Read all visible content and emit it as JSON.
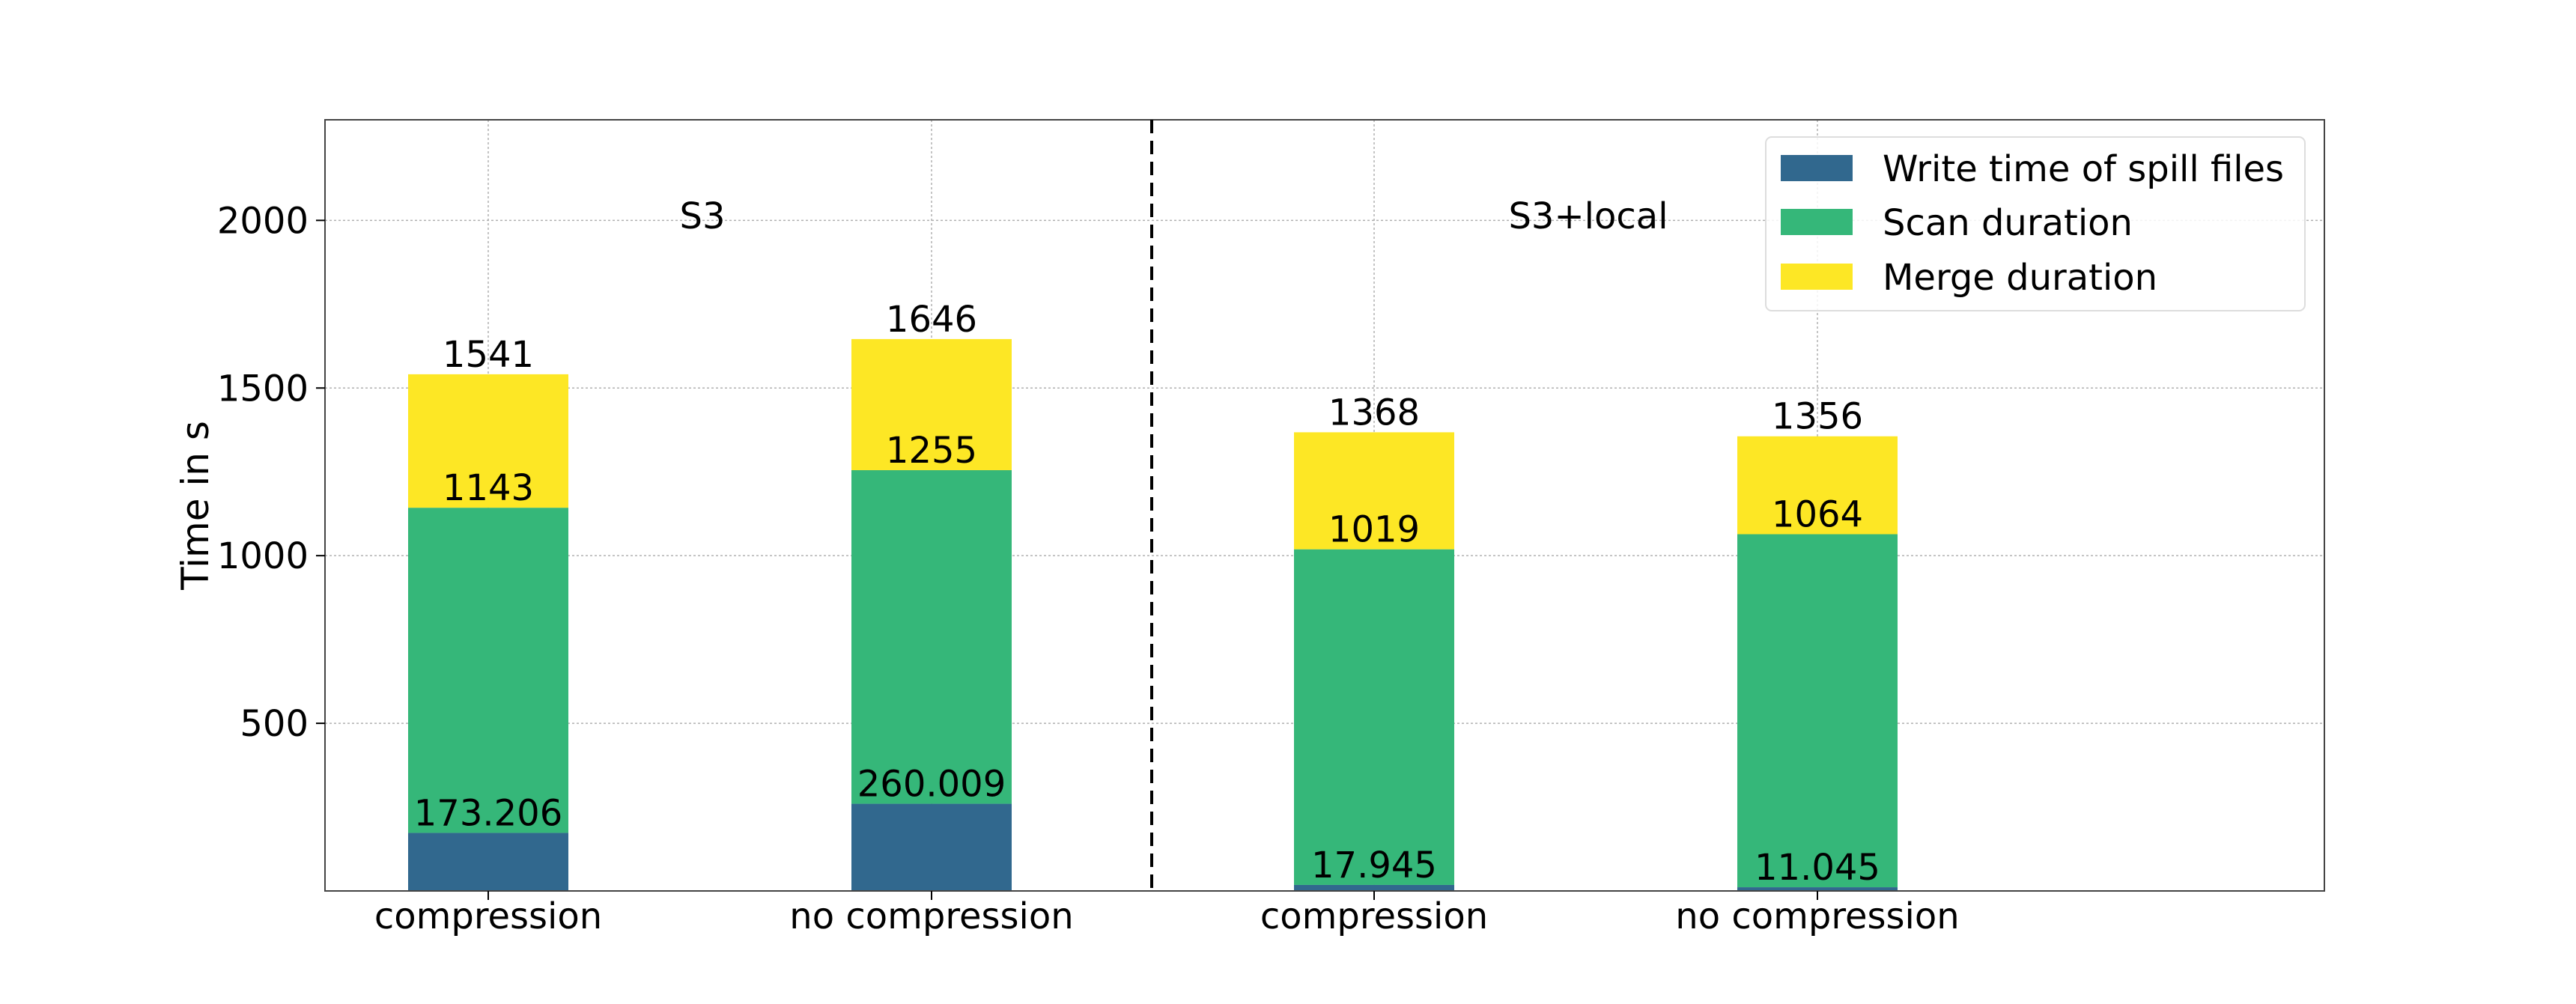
{
  "chart_data": {
    "type": "bar",
    "stacked": true,
    "title": "",
    "xlabel": "",
    "ylabel": "Time in s",
    "ylim": [
      0,
      2300
    ],
    "yticks": [
      500,
      1000,
      1500,
      2000
    ],
    "grid": true,
    "legend_position": "top-right",
    "groups": [
      {
        "label": "S3",
        "categories": [
          0,
          1
        ]
      },
      {
        "label": "S3+local",
        "categories": [
          2,
          3
        ]
      }
    ],
    "categories": [
      "compression",
      "no compression",
      "compression",
      "no compression"
    ],
    "series": [
      {
        "name": "Write time of spill files",
        "color": "#31688e",
        "values": [
          173.206,
          260.009,
          17.945,
          11.045
        ]
      },
      {
        "name": "Scan duration",
        "color": "#35b779",
        "values": [
          969.794,
          994.991,
          1001.055,
          1052.955
        ]
      },
      {
        "name": "Merge duration",
        "color": "#fde725",
        "values": [
          398,
          391,
          349,
          292
        ]
      }
    ],
    "data_labels": [
      {
        "category": 0,
        "write": "173.206",
        "scan_top": "1143",
        "total": "1541"
      },
      {
        "category": 1,
        "write": "260.009",
        "scan_top": "1255",
        "total": "1646"
      },
      {
        "category": 2,
        "write": "17.945",
        "scan_top": "1019",
        "total": "1368"
      },
      {
        "category": 3,
        "write": "11.045",
        "scan_top": "1064",
        "total": "1356"
      }
    ]
  }
}
